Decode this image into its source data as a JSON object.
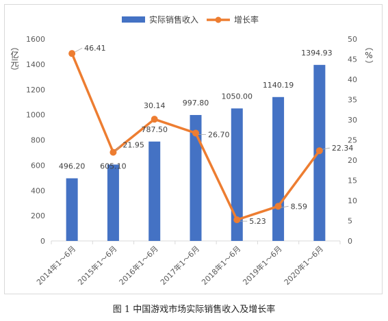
{
  "figure": {
    "caption": "图 1 中国游戏市场实际销售收入及增长率"
  },
  "chart_data": {
    "type": "bar+line",
    "categories": [
      "2014年1～6月",
      "2015年1～6月",
      "2016年1～6月",
      "2017年1～6月",
      "2018年1～6月",
      "2019年1～6月",
      "2020年1～6月"
    ],
    "series": [
      {
        "name": "实际销售收入",
        "type": "bar",
        "axis": "left",
        "values": [
          496.2,
          605.1,
          787.5,
          997.8,
          1050.0,
          1140.19,
          1394.93
        ],
        "labels": [
          "496.20",
          "605.10",
          "787.50",
          "997.80",
          "1050.00",
          "1140.19",
          "1394.93"
        ],
        "color": "#4472C4"
      },
      {
        "name": "增长率",
        "type": "line",
        "axis": "right",
        "values": [
          46.41,
          21.95,
          30.14,
          26.7,
          5.23,
          8.59,
          22.34
        ],
        "labels": [
          "46.41",
          "21.95",
          "30.14",
          "26.70",
          "5.23",
          "8.59",
          "22.34"
        ],
        "color": "#ED7D31"
      }
    ],
    "y_left": {
      "label": "（亿元）",
      "ylim": [
        0,
        1600
      ],
      "ticks": [
        0,
        200,
        400,
        600,
        800,
        1000,
        1200,
        1400,
        1600
      ]
    },
    "y_right": {
      "label": "（%）",
      "ylim": [
        0,
        50
      ],
      "ticks": [
        0,
        5,
        10,
        15,
        20,
        25,
        30,
        35,
        40,
        45,
        50
      ]
    },
    "legend": "top-center",
    "grid": false
  }
}
